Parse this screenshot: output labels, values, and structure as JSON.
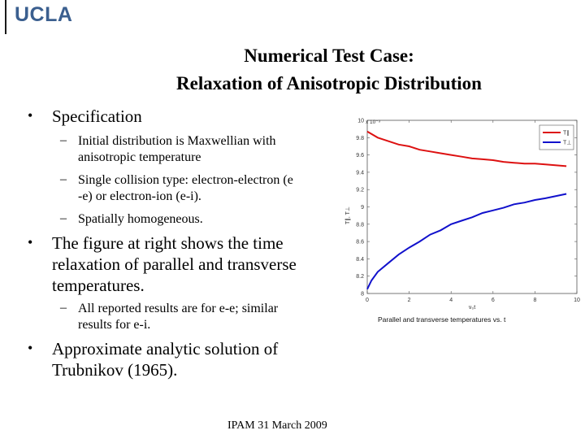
{
  "logo": "UCLA",
  "title_line1": "Numerical Test Case:",
  "title_line2": "Relaxation of Anisotropic Distribution",
  "bullet1": "Specification",
  "sub1a": "Initial distribution is Maxwellian with",
  "sub1b": "anisotropic temperature",
  "sub2a": "Single collision type: electron-electron (e",
  "sub2b": "-e) or electron-ion (e-i).",
  "sub3": "Spatially homogeneous.",
  "bullet2a": "The figure at right shows the time",
  "bullet2b": "relaxation of parallel and transverse",
  "bullet2c": "temperatures.",
  "sub4a": "All reported results are for e-e; similar",
  "sub4b": "results for e-i.",
  "bullet3a": "Approximate analytic solution of",
  "bullet3b": "Trubnikov (1965).",
  "footer": "IPAM 31 March 2009",
  "chart_data": {
    "type": "line",
    "title": "",
    "caption": "Parallel and transverse  temperatures vs. t",
    "xlabel": "ν₀t",
    "ylabel": "T∥, T⊥",
    "y_multiplier": "x 10⁻³",
    "xlim": [
      0,
      10
    ],
    "ylim": [
      8.0,
      10.0
    ],
    "xticks": [
      0,
      2,
      4,
      6,
      8,
      10
    ],
    "yticks": [
      8,
      8.2,
      8.4,
      8.6,
      8.8,
      9,
      9.2,
      9.4,
      9.6,
      9.8,
      10
    ],
    "legend_position": "top-right",
    "series": [
      {
        "name": "T∥",
        "color": "#dd1111",
        "x": [
          0,
          0.5,
          1,
          1.5,
          2,
          2.5,
          3,
          3.5,
          4,
          4.5,
          5,
          5.5,
          6,
          6.5,
          7,
          7.5,
          8,
          8.5,
          9.5
        ],
        "y": [
          9.87,
          9.8,
          9.76,
          9.72,
          9.7,
          9.66,
          9.64,
          9.62,
          9.6,
          9.58,
          9.56,
          9.55,
          9.54,
          9.52,
          9.51,
          9.5,
          9.5,
          9.49,
          9.47
        ]
      },
      {
        "name": "T⊥",
        "color": "#1111cc",
        "x": [
          0,
          0.2,
          0.5,
          1,
          1.5,
          2,
          2.5,
          3,
          3.5,
          4,
          4.5,
          5,
          5.5,
          6,
          6.5,
          7,
          7.5,
          8,
          8.5,
          9.5
        ],
        "y": [
          8.05,
          8.15,
          8.25,
          8.35,
          8.45,
          8.53,
          8.6,
          8.68,
          8.73,
          8.8,
          8.84,
          8.88,
          8.93,
          8.96,
          8.99,
          9.03,
          9.05,
          9.08,
          9.1,
          9.15
        ]
      }
    ]
  }
}
